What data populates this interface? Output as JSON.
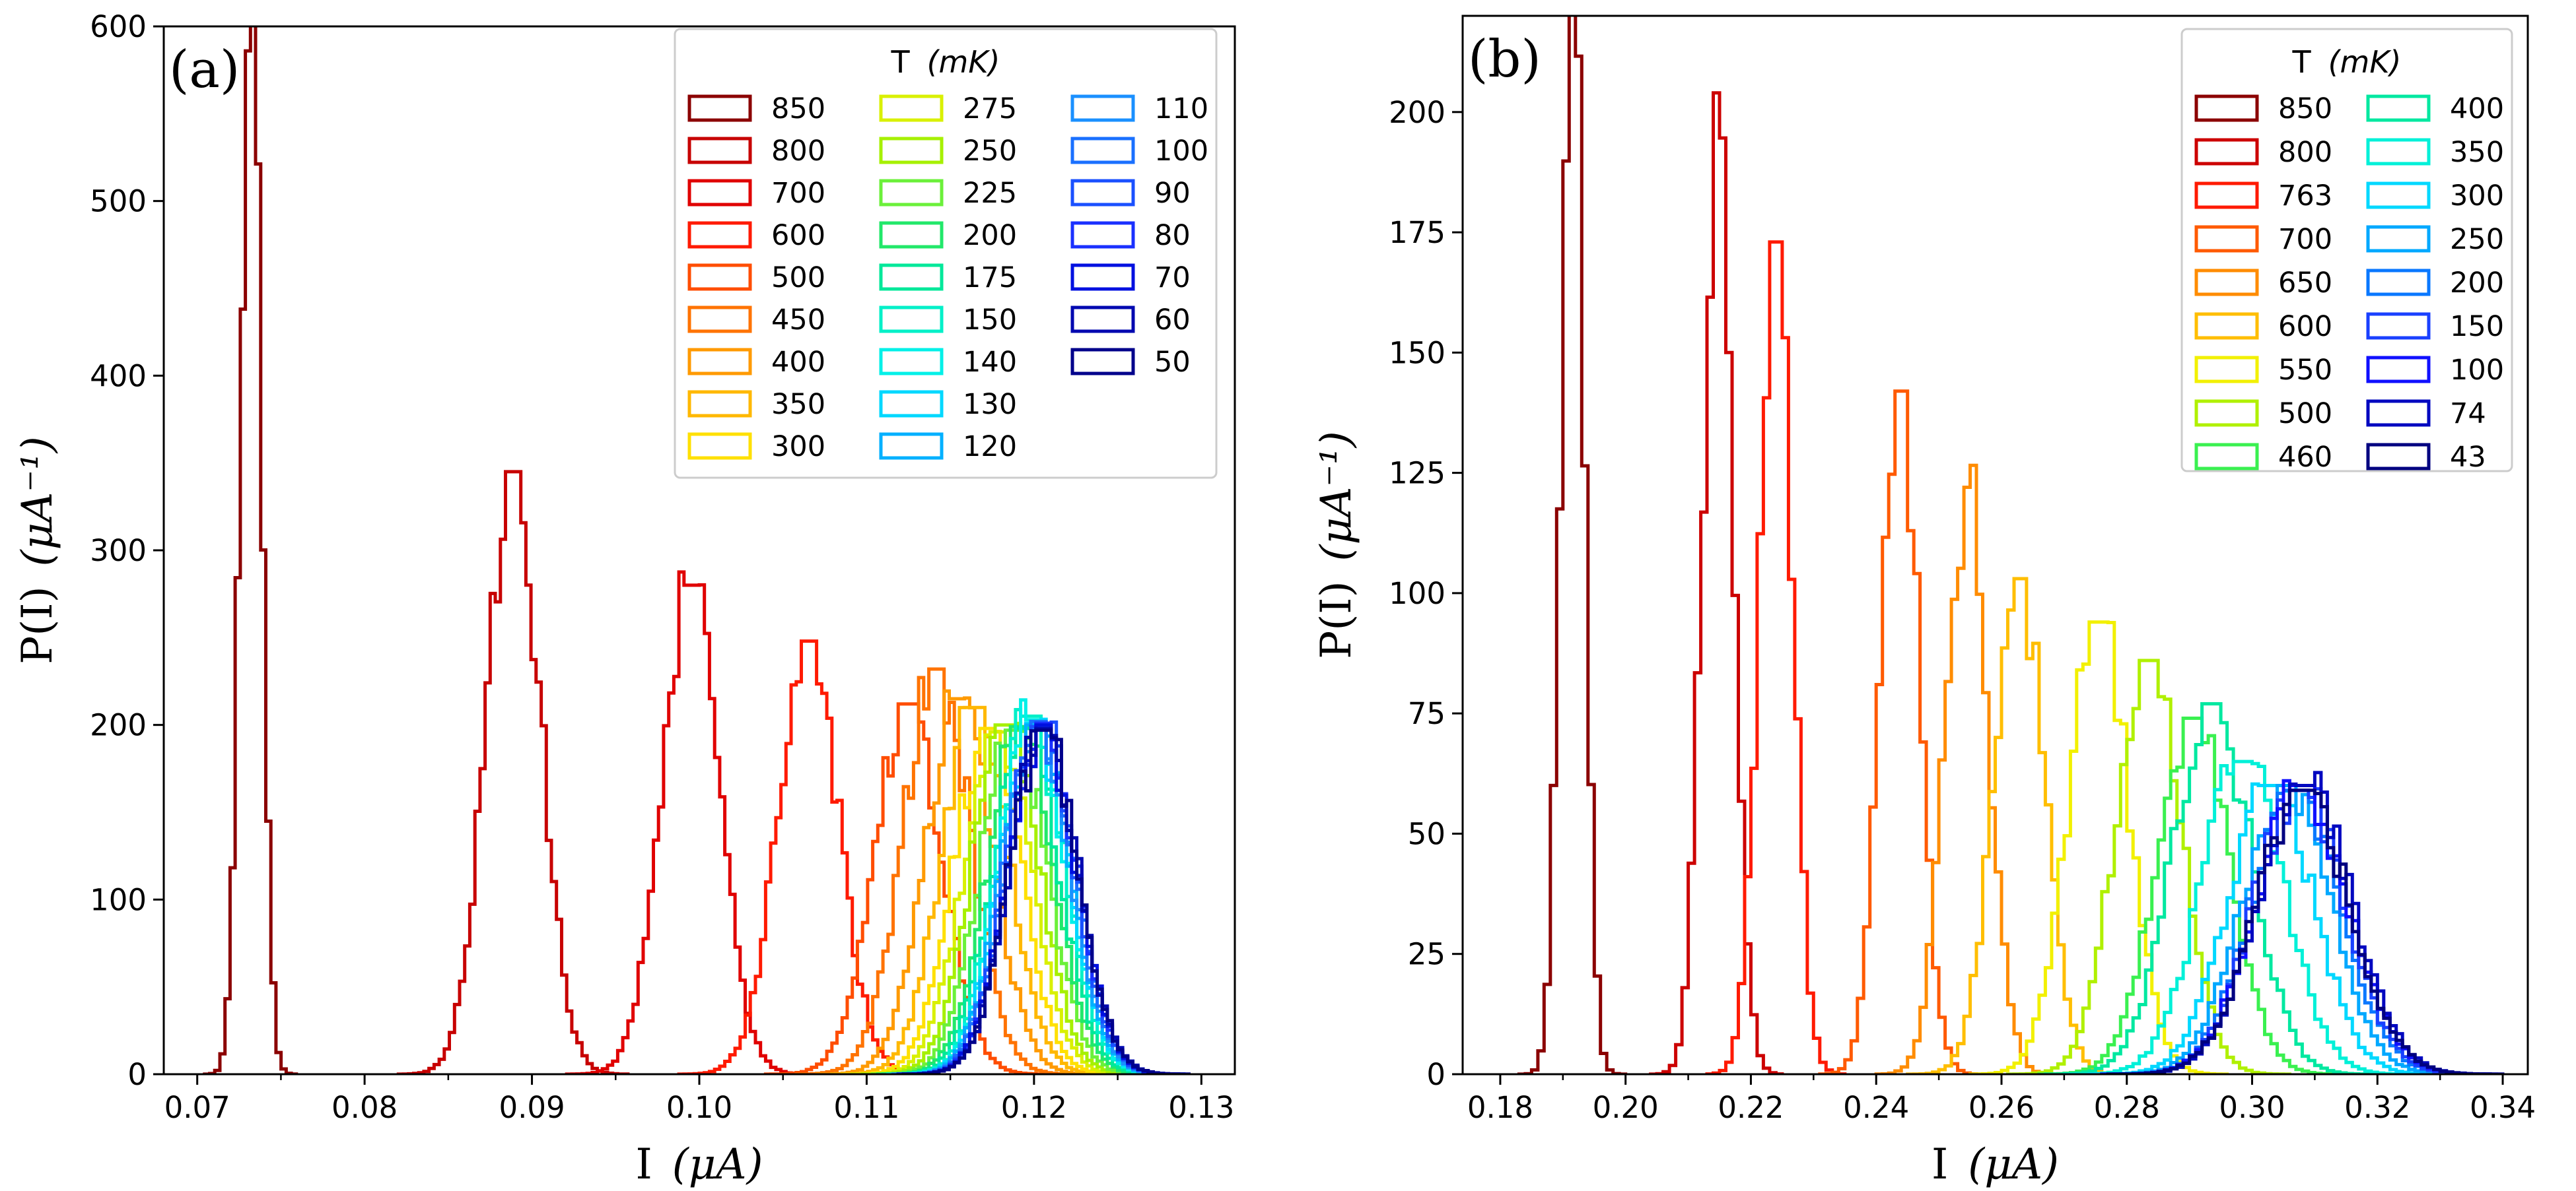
{
  "chart_data": [
    {
      "type": "histogram",
      "panel_label": "(a)",
      "xlabel": "I",
      "xlabel_unit": "(μA)",
      "ylabel": "P(I)",
      "ylabel_unit": "(μA⁻¹)",
      "xlim": [
        0.068,
        0.132
      ],
      "ylim": [
        0,
        600
      ],
      "xticks": [
        "0.07",
        "0.08",
        "0.09",
        "0.10",
        "0.11",
        "0.12",
        "0.13"
      ],
      "yticks": [
        "0",
        "100",
        "200",
        "300",
        "400",
        "500",
        "600"
      ],
      "legend": {
        "title": "T",
        "title_unit": "(mK)",
        "placement": "top-right",
        "columns": 3
      },
      "series": [
        {
          "name": "850",
          "color": "#8b0000",
          "center": 0.0732,
          "width": 0.0006,
          "peak": 620
        },
        {
          "name": "800",
          "color": "#c70000",
          "center": 0.0889,
          "width": 0.0016,
          "peak": 345
        },
        {
          "name": "700",
          "color": "#e00000",
          "center": 0.0995,
          "width": 0.0017,
          "peak": 280
        },
        {
          "name": "600",
          "color": "#ff1a00",
          "center": 0.1065,
          "width": 0.0018,
          "peak": 248
        },
        {
          "name": "500",
          "color": "#ff4d00",
          "center": 0.1125,
          "width": 0.002,
          "peak": 212
        },
        {
          "name": "450",
          "color": "#ff7300",
          "center": 0.1142,
          "width": 0.002,
          "peak": 232
        },
        {
          "name": "400",
          "color": "#ff9a00",
          "center": 0.1155,
          "width": 0.002,
          "peak": 215
        },
        {
          "name": "350",
          "color": "#ffb800",
          "center": 0.1165,
          "width": 0.002,
          "peak": 210
        },
        {
          "name": "300",
          "color": "#ffe000",
          "center": 0.1172,
          "width": 0.002,
          "peak": 198
        },
        {
          "name": "275",
          "color": "#d9f000",
          "center": 0.1178,
          "width": 0.002,
          "peak": 196
        },
        {
          "name": "250",
          "color": "#a6f000",
          "center": 0.1183,
          "width": 0.002,
          "peak": 200
        },
        {
          "name": "225",
          "color": "#6bf03a",
          "center": 0.1188,
          "width": 0.002,
          "peak": 197
        },
        {
          "name": "200",
          "color": "#22e86a",
          "center": 0.1192,
          "width": 0.002,
          "peak": 199
        },
        {
          "name": "175",
          "color": "#00e89a",
          "center": 0.1195,
          "width": 0.002,
          "peak": 198
        },
        {
          "name": "150",
          "color": "#00f0c8",
          "center": 0.1198,
          "width": 0.002,
          "peak": 205
        },
        {
          "name": "140",
          "color": "#00f0e8",
          "center": 0.1199,
          "width": 0.002,
          "peak": 203
        },
        {
          "name": "130",
          "color": "#00d8ff",
          "center": 0.12,
          "width": 0.002,
          "peak": 201
        },
        {
          "name": "120",
          "color": "#00b0ff",
          "center": 0.1201,
          "width": 0.002,
          "peak": 200
        },
        {
          "name": "110",
          "color": "#1a90ff",
          "center": 0.1202,
          "width": 0.002,
          "peak": 198
        },
        {
          "name": "100",
          "color": "#1a70ff",
          "center": 0.1203,
          "width": 0.002,
          "peak": 202
        },
        {
          "name": "90",
          "color": "#1a50ff",
          "center": 0.1204,
          "width": 0.002,
          "peak": 199
        },
        {
          "name": "80",
          "color": "#1a30ff",
          "center": 0.1205,
          "width": 0.002,
          "peak": 201
        },
        {
          "name": "70",
          "color": "#0010e0",
          "center": 0.1205,
          "width": 0.002,
          "peak": 200
        },
        {
          "name": "60",
          "color": "#0008b0",
          "center": 0.1206,
          "width": 0.002,
          "peak": 198
        },
        {
          "name": "50",
          "color": "#00008b",
          "center": 0.1206,
          "width": 0.002,
          "peak": 197
        }
      ]
    },
    {
      "type": "histogram",
      "panel_label": "(b)",
      "xlabel": "I",
      "xlabel_unit": "(μA)",
      "ylabel": "P(I)",
      "ylabel_unit": "(μA⁻¹)",
      "xlim": [
        0.174,
        0.344
      ],
      "ylim": [
        0,
        220
      ],
      "xticks": [
        "0.18",
        "0.20",
        "0.22",
        "0.24",
        "0.26",
        "0.28",
        "0.30",
        "0.32",
        "0.34"
      ],
      "yticks": [
        "0",
        "25",
        "50",
        "75",
        "100",
        "125",
        "150",
        "175",
        "200"
      ],
      "legend": {
        "title": "T",
        "title_unit": "(mK)",
        "placement": "top-right",
        "columns": 2
      },
      "series": [
        {
          "name": "850",
          "color": "#8b0000",
          "center": 0.1915,
          "width": 0.0018,
          "peak": 225
        },
        {
          "name": "800",
          "color": "#cc0000",
          "center": 0.2148,
          "width": 0.0024,
          "peak": 204
        },
        {
          "name": "763",
          "color": "#ff1a00",
          "center": 0.224,
          "width": 0.0026,
          "peak": 173
        },
        {
          "name": "700",
          "color": "#ff5a00",
          "center": 0.2438,
          "width": 0.003,
          "peak": 142
        },
        {
          "name": "650",
          "color": "#ff8c00",
          "center": 0.2545,
          "width": 0.0034,
          "peak": 122
        },
        {
          "name": "600",
          "color": "#ffbe00",
          "center": 0.2628,
          "width": 0.004,
          "peak": 103
        },
        {
          "name": "550",
          "color": "#f2f000",
          "center": 0.2755,
          "width": 0.0048,
          "peak": 94
        },
        {
          "name": "500",
          "color": "#b0f000",
          "center": 0.2835,
          "width": 0.0052,
          "peak": 86
        },
        {
          "name": "460",
          "color": "#3af050",
          "center": 0.2905,
          "width": 0.0058,
          "peak": 74
        },
        {
          "name": "400",
          "color": "#00e8a0",
          "center": 0.2935,
          "width": 0.0062,
          "peak": 77
        },
        {
          "name": "350",
          "color": "#00f0d8",
          "center": 0.2985,
          "width": 0.0066,
          "peak": 65
        },
        {
          "name": "300",
          "color": "#00d8ff",
          "center": 0.303,
          "width": 0.0068,
          "peak": 60
        },
        {
          "name": "250",
          "color": "#00a8ff",
          "center": 0.3055,
          "width": 0.007,
          "peak": 60
        },
        {
          "name": "200",
          "color": "#0a78ff",
          "center": 0.307,
          "width": 0.0072,
          "peak": 59
        },
        {
          "name": "150",
          "color": "#1a40ff",
          "center": 0.3075,
          "width": 0.0072,
          "peak": 59
        },
        {
          "name": "100",
          "color": "#1010ff",
          "center": 0.308,
          "width": 0.0074,
          "peak": 60
        },
        {
          "name": "74",
          "color": "#0008c0",
          "center": 0.3085,
          "width": 0.0074,
          "peak": 60
        },
        {
          "name": "43",
          "color": "#000080",
          "center": 0.3082,
          "width": 0.0074,
          "peak": 59
        }
      ]
    }
  ]
}
